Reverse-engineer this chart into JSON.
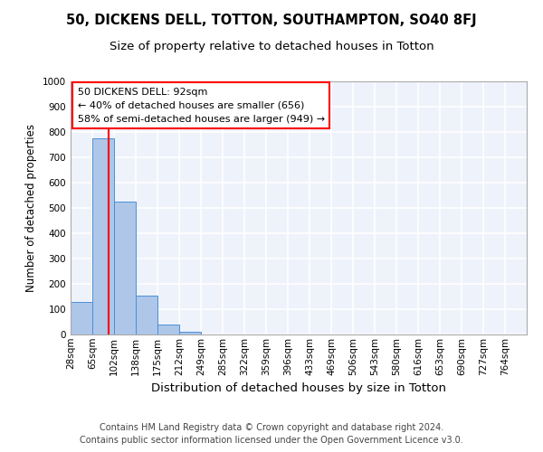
{
  "title1": "50, DICKENS DELL, TOTTON, SOUTHAMPTON, SO40 8FJ",
  "title2": "Size of property relative to detached houses in Totton",
  "xlabel": "Distribution of detached houses by size in Totton",
  "ylabel": "Number of detached properties",
  "bin_labels": [
    "28sqm",
    "65sqm",
    "102sqm",
    "138sqm",
    "175sqm",
    "212sqm",
    "249sqm",
    "285sqm",
    "322sqm",
    "359sqm",
    "396sqm",
    "433sqm",
    "469sqm",
    "506sqm",
    "543sqm",
    "580sqm",
    "616sqm",
    "653sqm",
    "690sqm",
    "727sqm",
    "764sqm"
  ],
  "bar_values": [
    130,
    775,
    525,
    155,
    40,
    12,
    0,
    0,
    0,
    0,
    0,
    0,
    0,
    0,
    0,
    0,
    0,
    0,
    0,
    0,
    0
  ],
  "bar_color": "#aec6e8",
  "bar_edge_color": "#4a90d9",
  "ylim": [
    0,
    1000
  ],
  "yticks": [
    0,
    100,
    200,
    300,
    400,
    500,
    600,
    700,
    800,
    900,
    1000
  ],
  "annotation_text": "50 DICKENS DELL: 92sqm\n← 40% of detached houses are smaller (656)\n58% of semi-detached houses are larger (949) →",
  "footer1": "Contains HM Land Registry data © Crown copyright and database right 2024.",
  "footer2": "Contains public sector information licensed under the Open Government Licence v3.0.",
  "bg_color": "#eef2fb",
  "grid_color": "#ffffff",
  "title1_fontsize": 10.5,
  "title2_fontsize": 9.5,
  "xlabel_fontsize": 9.5,
  "ylabel_fontsize": 8.5,
  "tick_fontsize": 7.5,
  "footer_fontsize": 7.0,
  "annot_fontsize": 8.0
}
